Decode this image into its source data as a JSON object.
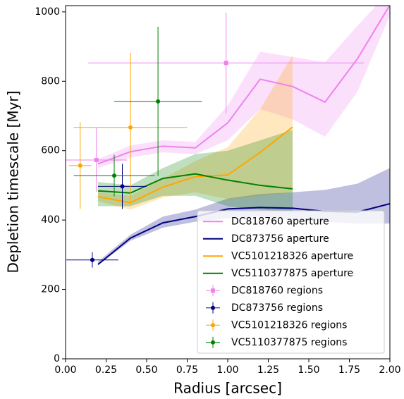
{
  "chart_data": {
    "type": "line",
    "xlabel": "Radius [arcsec]",
    "ylabel": "Depletion timescale [Myr]",
    "xlim": [
      0,
      2
    ],
    "ylim": [
      0,
      1018
    ],
    "xticks": [
      {
        "value": 0,
        "label": "0.00"
      },
      {
        "value": 0.25,
        "label": "0.25"
      },
      {
        "value": 0.5,
        "label": "0.50"
      },
      {
        "value": 0.75,
        "label": "0.75"
      },
      {
        "value": 1,
        "label": "1.00"
      },
      {
        "value": 1.25,
        "label": "1.25"
      },
      {
        "value": 1.5,
        "label": "1.50"
      },
      {
        "value": 1.75,
        "label": "1.75"
      },
      {
        "value": 2,
        "label": "2.00"
      }
    ],
    "yticks": [
      0,
      200,
      400,
      600,
      800,
      1000
    ],
    "legend": "lower right",
    "x": [
      0.2,
      0.4,
      0.6,
      0.8,
      1.0,
      1.2,
      1.4,
      1.6,
      1.8,
      2.0
    ],
    "series": [
      {
        "name": "DC818760 aperture",
        "color": "#ee82ee",
        "values": [
          562,
          597,
          613,
          608,
          680,
          806,
          785,
          740,
          865,
          1020
        ],
        "band_lower": [
          550,
          580,
          595,
          590,
          630,
          720,
          690,
          640,
          770,
          990
        ],
        "band_upper": [
          575,
          615,
          630,
          625,
          730,
          885,
          870,
          855,
          960,
          1060
        ]
      },
      {
        "name": "DC873756 aperture",
        "color": "#000080",
        "values": [
          272,
          348,
          392,
          410,
          432,
          436,
          434,
          425,
          423,
          447
        ],
        "band_lower": [
          270,
          340,
          378,
          395,
          405,
          410,
          400,
          395,
          390,
          390
        ],
        "band_upper": [
          280,
          358,
          410,
          430,
          462,
          475,
          480,
          487,
          505,
          550
        ]
      },
      {
        "name": "VC5101218326 aperture",
        "color": "#ffa500",
        "values": [
          467,
          450,
          495,
          525,
          530,
          595,
          668,
          null,
          null,
          null
        ],
        "band_lower": [
          455,
          430,
          465,
          480,
          460,
          470,
          480,
          null,
          null,
          null
        ],
        "band_upper": [
          480,
          470,
          520,
          570,
          610,
          720,
          875,
          null,
          null,
          null
        ]
      },
      {
        "name": "VC5110377875 aperture",
        "color": "#008000",
        "values": [
          484,
          478,
          520,
          533,
          515,
          500,
          490,
          null,
          null,
          null
        ],
        "band_lower": [
          440,
          440,
          470,
          470,
          440,
          430,
          425,
          null,
          null,
          null
        ],
        "band_upper": [
          510,
          500,
          550,
          590,
          600,
          630,
          660,
          null,
          null,
          null
        ]
      }
    ],
    "points": [
      {
        "name": "DC818760 regions",
        "color": "#ee82ee",
        "marker": "square",
        "x": [
          0.19,
          0.99
        ],
        "values": [
          573,
          853
        ],
        "xerr": [
          0.19,
          0.85
        ],
        "yerr": [
          92,
          145
        ]
      },
      {
        "name": "DC873756 regions",
        "color": "#000080",
        "marker": "circle",
        "x": [
          0.165,
          0.35
        ],
        "values": [
          285,
          497
        ],
        "xerr": [
          0.16,
          0.15
        ],
        "yerr": [
          22,
          65
        ]
      },
      {
        "name": "VC5101218326 regions",
        "color": "#ffa500",
        "marker": "circle",
        "x": [
          0.09,
          0.4
        ],
        "values": [
          557,
          667
        ],
        "xerr": [
          0.07,
          0.35
        ],
        "yerr": [
          125,
          215
        ]
      },
      {
        "name": "VC5110377875 regions",
        "color": "#008000",
        "marker": "circle",
        "x": [
          0.3,
          0.57
        ],
        "values": [
          528,
          742
        ],
        "xerr": [
          0.25,
          0.27
        ],
        "yerr": [
          60,
          215
        ]
      }
    ]
  }
}
